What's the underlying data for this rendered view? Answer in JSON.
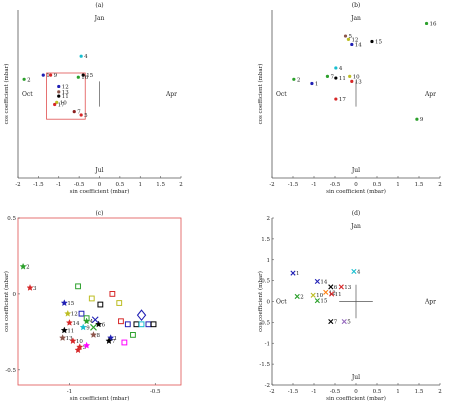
{
  "chart_data": [
    {
      "id": "a",
      "type": "scatter",
      "title": "(a)",
      "xlabel": "sin coefficient (mbar)",
      "ylabel": "cos coefficient (mbar)",
      "xlim": [
        -2,
        2
      ],
      "ylim": [
        -2,
        2
      ],
      "xticks": [
        "-2",
        "-1.5",
        "-1",
        "-0.5",
        "0",
        "0.5",
        "1",
        "1.5",
        "2"
      ],
      "month_labels": {
        "top": "Jan",
        "bottom": "Jul",
        "left": "Oct",
        "right": "Apr"
      },
      "zoom_box": {
        "x0": -1.3,
        "x1": -0.35,
        "y0": -0.6,
        "y1": 0.5
      },
      "points": [
        {
          "label": "4",
          "x": -0.45,
          "y": 0.9,
          "color": "#17becf"
        },
        {
          "label": "2",
          "x": -1.85,
          "y": 0.35,
          "color": "#2ca02c"
        },
        {
          "label": "1",
          "x": -1.38,
          "y": 0.45,
          "color": "#1f1fb4"
        },
        {
          "label": "9",
          "x": -1.2,
          "y": 0.45,
          "color": "#d62728"
        },
        {
          "label": "15",
          "x": -0.4,
          "y": 0.45,
          "color": "#000000"
        },
        {
          "label": "16",
          "x": -0.52,
          "y": 0.4,
          "color": "#2ca02c"
        },
        {
          "label": "12",
          "x": -1.0,
          "y": 0.18,
          "color": "#1f1fb4"
        },
        {
          "label": "13",
          "x": -1.0,
          "y": 0.05,
          "color": "#8c564b"
        },
        {
          "label": "11",
          "x": -1.0,
          "y": -0.05,
          "color": "#000000"
        },
        {
          "label": "10",
          "x": -1.05,
          "y": -0.2,
          "color": "#bcbd22"
        },
        {
          "label": "17",
          "x": -1.1,
          "y": -0.25,
          "color": "#d62728"
        },
        {
          "label": "7",
          "x": -0.62,
          "y": -0.42,
          "color": "#8c1f1f"
        },
        {
          "label": "5",
          "x": -0.45,
          "y": -0.5,
          "color": "#d62728"
        }
      ]
    },
    {
      "id": "b",
      "type": "scatter",
      "title": "(b)",
      "xlabel": "sin coefficient (mbar)",
      "ylabel": "cos coefficient (mbar)",
      "xlim": [
        -2,
        2
      ],
      "ylim": [
        -2,
        2
      ],
      "xticks": [
        "-2",
        "-1.5",
        "-1",
        "-0.5",
        "0",
        "0.5",
        "1",
        "1.5",
        "2"
      ],
      "month_labels": {
        "top": "Jan",
        "bottom": "Jul",
        "left": "Oct",
        "right": "Apr"
      },
      "points": [
        {
          "label": "16",
          "x": 1.68,
          "y": 1.68,
          "color": "#2ca02c"
        },
        {
          "label": "5",
          "x": -0.25,
          "y": 1.38,
          "color": "#8c564b"
        },
        {
          "label": "12",
          "x": -0.18,
          "y": 1.3,
          "color": "#bcbd22"
        },
        {
          "label": "14",
          "x": -0.1,
          "y": 1.18,
          "color": "#1f1fb4"
        },
        {
          "label": "15",
          "x": 0.38,
          "y": 1.25,
          "color": "#000000"
        },
        {
          "label": "4",
          "x": -0.48,
          "y": 0.62,
          "color": "#17becf"
        },
        {
          "label": "2",
          "x": -1.48,
          "y": 0.35,
          "color": "#2ca02c"
        },
        {
          "label": "7",
          "x": -0.68,
          "y": 0.42,
          "color": "#2ca02c"
        },
        {
          "label": "11",
          "x": -0.48,
          "y": 0.38,
          "color": "#000000"
        },
        {
          "label": "10",
          "x": -0.15,
          "y": 0.42,
          "color": "#bcbd22"
        },
        {
          "label": "1",
          "x": -1.05,
          "y": 0.25,
          "color": "#1f1fb4"
        },
        {
          "label": "13",
          "x": -0.1,
          "y": 0.3,
          "color": "#d62728"
        },
        {
          "label": "17",
          "x": -0.48,
          "y": -0.12,
          "color": "#d62728"
        },
        {
          "label": "9",
          "x": 1.45,
          "y": -0.6,
          "color": "#2ca02c"
        }
      ]
    },
    {
      "id": "c",
      "type": "scatter",
      "title": "(c)",
      "xlabel": "sin coefficient (mbar)",
      "ylabel": "cos coefficient (mbar)",
      "xlim": [
        -1.3,
        -0.35
      ],
      "ylim": [
        -0.6,
        0.5
      ],
      "xticks": [
        "-1",
        "-0.5"
      ],
      "yticks": [
        "-0.5",
        "0",
        "0.5"
      ],
      "points": [
        {
          "label": "2",
          "x": -1.27,
          "y": 0.18,
          "color": "#2ca02c",
          "marker": "star"
        },
        {
          "label": "3",
          "x": -1.23,
          "y": 0.04,
          "color": "#d62728",
          "marker": "star"
        },
        {
          "label": "15",
          "x": -1.03,
          "y": -0.06,
          "color": "#1f1fb4",
          "marker": "star"
        },
        {
          "label": "12",
          "x": -1.01,
          "y": -0.13,
          "color": "#bcbd22",
          "marker": "star"
        },
        {
          "label": "14",
          "x": -1.0,
          "y": -0.19,
          "color": "#d62728",
          "marker": "star"
        },
        {
          "label": "11",
          "x": -1.03,
          "y": -0.24,
          "color": "#000000",
          "marker": "star"
        },
        {
          "label": "13",
          "x": -1.04,
          "y": -0.29,
          "color": "#8c564b",
          "marker": "star"
        },
        {
          "label": "10",
          "x": -0.98,
          "y": -0.31,
          "color": "#d62728",
          "marker": "star"
        },
        {
          "label": "1",
          "x": -0.76,
          "y": -0.29,
          "color": "#1f1fb4",
          "marker": "star"
        },
        {
          "label": "7",
          "x": -0.77,
          "y": -0.31,
          "color": "#000000",
          "marker": "star"
        },
        {
          "label": "5",
          "x": -0.94,
          "y": -0.35,
          "color": "#d62728",
          "marker": "star"
        },
        {
          "label": "4",
          "x": -0.9,
          "y": -0.18,
          "color": "#2ca02c",
          "marker": "star"
        },
        {
          "label": "9",
          "x": -0.92,
          "y": -0.22,
          "color": "#17becf",
          "marker": "star"
        },
        {
          "label": "6",
          "x": -0.83,
          "y": -0.2,
          "color": "#000000",
          "marker": "star"
        },
        {
          "label": "8",
          "x": -0.86,
          "y": -0.27,
          "color": "#8c564b",
          "marker": "star"
        },
        {
          "label": "",
          "x": -0.95,
          "y": -0.37,
          "color": "#d62728",
          "marker": "star"
        },
        {
          "label": "",
          "x": -0.9,
          "y": -0.34,
          "color": "#ff00ff",
          "marker": "star"
        },
        {
          "label": "",
          "x": -0.95,
          "y": 0.05,
          "color": "#2ca02c",
          "marker": "square"
        },
        {
          "label": "",
          "x": -0.87,
          "y": -0.03,
          "color": "#bcbd22",
          "marker": "square"
        },
        {
          "label": "",
          "x": -0.82,
          "y": -0.07,
          "color": "#000000",
          "marker": "square"
        },
        {
          "label": "",
          "x": -0.93,
          "y": -0.13,
          "color": "#1f1fb4",
          "marker": "square"
        },
        {
          "label": "",
          "x": -0.9,
          "y": -0.16,
          "color": "#2ca02c",
          "marker": "square"
        },
        {
          "label": "",
          "x": -0.75,
          "y": 0.0,
          "color": "#d62728",
          "marker": "square"
        },
        {
          "label": "",
          "x": -0.71,
          "y": -0.06,
          "color": "#bcbd22",
          "marker": "square"
        },
        {
          "label": "",
          "x": -0.7,
          "y": -0.18,
          "color": "#d62728",
          "marker": "square"
        },
        {
          "label": "",
          "x": -0.66,
          "y": -0.2,
          "color": "#1f1fb4",
          "marker": "square"
        },
        {
          "label": "",
          "x": -0.61,
          "y": -0.2,
          "color": "#000000",
          "marker": "square"
        },
        {
          "label": "",
          "x": -0.58,
          "y": -0.2,
          "color": "#17becf",
          "marker": "square"
        },
        {
          "label": "",
          "x": -0.63,
          "y": -0.27,
          "color": "#2ca02c",
          "marker": "square"
        },
        {
          "label": "",
          "x": -0.68,
          "y": -0.32,
          "color": "#ff00ff",
          "marker": "square"
        },
        {
          "label": "",
          "x": -0.54,
          "y": -0.2,
          "color": "#1f1fb4",
          "marker": "square"
        },
        {
          "label": "",
          "x": -0.51,
          "y": -0.2,
          "color": "#000000",
          "marker": "square"
        },
        {
          "label": "",
          "x": -0.86,
          "y": -0.22,
          "color": "#2ca02c",
          "marker": "cross"
        },
        {
          "label": "",
          "x": -0.85,
          "y": -0.17,
          "color": "#1f1fb4",
          "marker": "cross"
        },
        {
          "label": "",
          "x": -0.58,
          "y": -0.14,
          "color": "#1f1fb4",
          "marker": "diamond"
        }
      ]
    },
    {
      "id": "d",
      "type": "scatter",
      "title": "(d)",
      "xlabel": "sin coefficient (mbar)",
      "ylabel": "cos coefficient (mbar)",
      "xlim": [
        -2,
        2
      ],
      "ylim": [
        -2,
        2
      ],
      "xticks": [
        "-2",
        "-1.5",
        "-1",
        "-0.5",
        "0",
        "0.5",
        "1",
        "1.5",
        "2"
      ],
      "yticks": [
        "-2",
        "-1.5",
        "-1",
        "-0.5",
        "0",
        "0.5",
        "1",
        "1.5",
        "2"
      ],
      "month_labels": {
        "top": "Jan",
        "bottom": "Jul",
        "left": "Oct",
        "right": "Apr"
      },
      "points": [
        {
          "label": "1",
          "x": -1.5,
          "y": 0.68,
          "color": "#1f1fb4"
        },
        {
          "label": "4",
          "x": -0.05,
          "y": 0.72,
          "color": "#17becf"
        },
        {
          "label": "14",
          "x": -0.92,
          "y": 0.48,
          "color": "#1f1fb4"
        },
        {
          "label": "13",
          "x": -0.35,
          "y": 0.35,
          "color": "#d62728"
        },
        {
          "label": "6",
          "x": -0.6,
          "y": 0.35,
          "color": "#000000"
        },
        {
          "label": "12",
          "x": -0.72,
          "y": 0.22,
          "color": "#ff7f0e"
        },
        {
          "label": "2",
          "x": -1.4,
          "y": 0.12,
          "color": "#2ca02c"
        },
        {
          "label": "10",
          "x": -1.02,
          "y": 0.15,
          "color": "#bcbd22"
        },
        {
          "label": "11",
          "x": -0.58,
          "y": 0.18,
          "color": "#d62728"
        },
        {
          "label": "15",
          "x": -0.92,
          "y": 0.02,
          "color": "#2ca02c"
        },
        {
          "label": "7",
          "x": -0.6,
          "y": -0.48,
          "color": "#000000"
        },
        {
          "label": "5",
          "x": -0.28,
          "y": -0.48,
          "color": "#9467bd"
        }
      ]
    }
  ]
}
